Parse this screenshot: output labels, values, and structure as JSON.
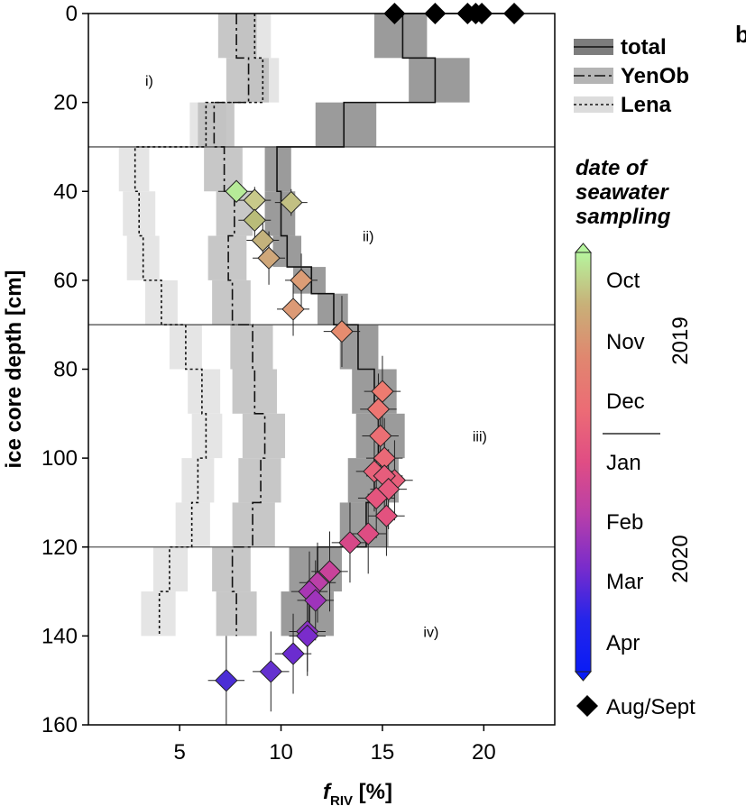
{
  "panel_letter": "b",
  "chart_data": {
    "type": "step-profile",
    "title": "",
    "xlabel_main": "f",
    "xlabel_sub": "RIV",
    "xlabel_unit": " [%]",
    "ylabel": "ice core depth [cm]",
    "xlim": [
      0.5,
      23.5
    ],
    "ylim": [
      0,
      160
    ],
    "y_inverted": true,
    "grid": false,
    "x_ticks": [
      5,
      10,
      15,
      20
    ],
    "y_ticks": [
      0,
      20,
      40,
      60,
      80,
      100,
      120,
      140,
      160
    ],
    "zone_boundaries": [
      30,
      70,
      120
    ],
    "zones": [
      {
        "label": "i)",
        "x": 3.5,
        "depth": 15
      },
      {
        "label": "ii)",
        "x": 14.3,
        "depth": 50
      },
      {
        "label": "iii)",
        "x": 19.8,
        "depth": 95
      },
      {
        "label": "iv)",
        "x": 17.4,
        "depth": 139
      }
    ],
    "series": [
      {
        "name": "total",
        "line_style": "solid",
        "band_color": "#8a8a8a",
        "segments": [
          {
            "top": 0,
            "bottom": 10,
            "value": 16.0,
            "lo": 14.6,
            "hi": 17.2
          },
          {
            "top": 10,
            "bottom": 20,
            "value": 17.6,
            "lo": 16.3,
            "hi": 19.3
          },
          {
            "top": 20,
            "bottom": 30,
            "value": 13.1,
            "lo": 11.7,
            "hi": 14.7
          },
          {
            "top": 30,
            "bottom": 40,
            "value": 9.8,
            "lo": 9.2,
            "hi": 10.5
          },
          {
            "top": 40,
            "bottom": 50,
            "value": 10.0,
            "lo": 9.2,
            "hi": 10.7
          },
          {
            "top": 50,
            "bottom": 57,
            "value": 10.3,
            "lo": 9.6,
            "hi": 11.0
          },
          {
            "top": 57,
            "bottom": 63,
            "value": 11.5,
            "lo": 10.6,
            "hi": 12.2
          },
          {
            "top": 63,
            "bottom": 70,
            "value": 12.6,
            "lo": 11.8,
            "hi": 13.3
          },
          {
            "top": 70,
            "bottom": 80,
            "value": 13.8,
            "lo": 12.9,
            "hi": 14.8
          },
          {
            "top": 80,
            "bottom": 90,
            "value": 14.6,
            "lo": 13.5,
            "hi": 15.7
          },
          {
            "top": 90,
            "bottom": 100,
            "value": 14.8,
            "lo": 13.7,
            "hi": 16.1
          },
          {
            "top": 100,
            "bottom": 110,
            "value": 14.6,
            "lo": 13.3,
            "hi": 15.8
          },
          {
            "top": 110,
            "bottom": 120,
            "value": 14.2,
            "lo": 12.9,
            "hi": 15.3
          },
          {
            "top": 120,
            "bottom": 130,
            "value": 11.8,
            "lo": 10.4,
            "hi": 13.0
          },
          {
            "top": 130,
            "bottom": 140,
            "value": 11.4,
            "lo": 10.0,
            "hi": 12.6
          }
        ]
      },
      {
        "name": "YenOb",
        "line_style": "dashdot",
        "band_color": "#bdbdbd",
        "segments": [
          {
            "top": 0,
            "bottom": 10,
            "value": 7.8,
            "lo": 6.9,
            "hi": 8.8
          },
          {
            "top": 10,
            "bottom": 20,
            "value": 8.4,
            "lo": 7.3,
            "hi": 9.4
          },
          {
            "top": 20,
            "bottom": 30,
            "value": 6.7,
            "lo": 5.9,
            "hi": 7.7
          },
          {
            "top": 30,
            "bottom": 40,
            "value": 7.2,
            "lo": 6.2,
            "hi": 8.1
          },
          {
            "top": 40,
            "bottom": 50,
            "value": 7.7,
            "lo": 6.8,
            "hi": 8.6
          },
          {
            "top": 50,
            "bottom": 60,
            "value": 7.4,
            "lo": 6.4,
            "hi": 8.3
          },
          {
            "top": 60,
            "bottom": 70,
            "value": 7.6,
            "lo": 6.6,
            "hi": 8.5
          },
          {
            "top": 70,
            "bottom": 80,
            "value": 8.6,
            "lo": 7.5,
            "hi": 9.6
          },
          {
            "top": 80,
            "bottom": 90,
            "value": 8.7,
            "lo": 7.6,
            "hi": 9.8
          },
          {
            "top": 90,
            "bottom": 100,
            "value": 9.2,
            "lo": 8.1,
            "hi": 10.2
          },
          {
            "top": 100,
            "bottom": 110,
            "value": 9.0,
            "lo": 7.9,
            "hi": 10.0
          },
          {
            "top": 110,
            "bottom": 120,
            "value": 8.6,
            "lo": 7.6,
            "hi": 9.7
          },
          {
            "top": 120,
            "bottom": 130,
            "value": 7.6,
            "lo": 6.6,
            "hi": 8.5
          },
          {
            "top": 130,
            "bottom": 140,
            "value": 7.8,
            "lo": 6.8,
            "hi": 8.8
          }
        ]
      },
      {
        "name": "Lena",
        "line_style": "dotted",
        "band_color": "#e1e1e1",
        "segments": [
          {
            "top": 0,
            "bottom": 10,
            "value": 8.7,
            "lo": 7.8,
            "hi": 9.5
          },
          {
            "top": 10,
            "bottom": 20,
            "value": 9.1,
            "lo": 8.3,
            "hi": 9.9
          },
          {
            "top": 20,
            "bottom": 30,
            "value": 6.3,
            "lo": 5.5,
            "hi": 7.3
          },
          {
            "top": 30,
            "bottom": 40,
            "value": 2.8,
            "lo": 2.0,
            "hi": 3.5
          },
          {
            "top": 40,
            "bottom": 50,
            "value": 3.0,
            "lo": 2.2,
            "hi": 3.8
          },
          {
            "top": 50,
            "bottom": 60,
            "value": 3.2,
            "lo": 2.4,
            "hi": 4.0
          },
          {
            "top": 60,
            "bottom": 70,
            "value": 4.1,
            "lo": 3.3,
            "hi": 4.9
          },
          {
            "top": 70,
            "bottom": 80,
            "value": 5.3,
            "lo": 4.5,
            "hi": 6.1
          },
          {
            "top": 80,
            "bottom": 90,
            "value": 6.1,
            "lo": 5.4,
            "hi": 7.0
          },
          {
            "top": 90,
            "bottom": 100,
            "value": 6.3,
            "lo": 5.6,
            "hi": 7.1
          },
          {
            "top": 100,
            "bottom": 110,
            "value": 5.9,
            "lo": 5.1,
            "hi": 6.7
          },
          {
            "top": 110,
            "bottom": 120,
            "value": 5.6,
            "lo": 4.8,
            "hi": 6.5
          },
          {
            "top": 120,
            "bottom": 130,
            "value": 4.5,
            "lo": 3.7,
            "hi": 5.4
          },
          {
            "top": 130,
            "bottom": 140,
            "value": 4.0,
            "lo": 3.1,
            "hi": 4.8
          }
        ]
      }
    ],
    "seawater_samples": [
      {
        "x": 7.8,
        "y": 40,
        "xerr": 0.9,
        "yerr": 0,
        "color": "#b6eb98"
      },
      {
        "x": 8.7,
        "y": 42,
        "xerr": 0.8,
        "yerr": 3,
        "color": "#c8c98a"
      },
      {
        "x": 10.5,
        "y": 42.5,
        "xerr": 0.8,
        "yerr": 3,
        "color": "#c2c083"
      },
      {
        "x": 8.7,
        "y": 46.5,
        "xerr": 0.8,
        "yerr": 4,
        "color": "#b9bc79"
      },
      {
        "x": 9.1,
        "y": 51,
        "xerr": 0.8,
        "yerr": 5,
        "color": "#c4b27c"
      },
      {
        "x": 9.4,
        "y": 55,
        "xerr": 0.8,
        "yerr": 6,
        "color": "#cfa77a"
      },
      {
        "x": 11.0,
        "y": 60,
        "xerr": 0.8,
        "yerr": 6,
        "color": "#dc9d76"
      },
      {
        "x": 10.6,
        "y": 66.5,
        "xerr": 0.8,
        "yerr": 6,
        "color": "#dc9a76"
      },
      {
        "x": 13.0,
        "y": 71.5,
        "xerr": 0.9,
        "yerr": 8,
        "color": "#e68c6f"
      },
      {
        "x": 15.0,
        "y": 85,
        "xerr": 0.9,
        "yerr": 8,
        "color": "#ed7b70"
      },
      {
        "x": 14.8,
        "y": 89,
        "xerr": 0.9,
        "yerr": 8,
        "color": "#ed7672"
      },
      {
        "x": 14.9,
        "y": 95,
        "xerr": 0.9,
        "yerr": 8,
        "color": "#ec6f74"
      },
      {
        "x": 15.1,
        "y": 100,
        "xerr": 0.9,
        "yerr": 9,
        "color": "#ea6977"
      },
      {
        "x": 14.6,
        "y": 103,
        "xerr": 0.9,
        "yerr": 9,
        "color": "#e8627a"
      },
      {
        "x": 15.6,
        "y": 105,
        "xerr": 0.9,
        "yerr": 9,
        "color": "#e75f7b"
      },
      {
        "x": 15.1,
        "y": 104,
        "xerr": 0.9,
        "yerr": 9,
        "color": "#e65d7c"
      },
      {
        "x": 15.3,
        "y": 107,
        "xerr": 0.9,
        "yerr": 9,
        "color": "#e5597d"
      },
      {
        "x": 14.7,
        "y": 109,
        "xerr": 0.9,
        "yerr": 9,
        "color": "#e4557e"
      },
      {
        "x": 15.2,
        "y": 113,
        "xerr": 0.9,
        "yerr": 9,
        "color": "#e3527f"
      },
      {
        "x": 14.3,
        "y": 117,
        "xerr": 0.9,
        "yerr": 9,
        "color": "#de4d83"
      },
      {
        "x": 13.4,
        "y": 119,
        "xerr": 0.9,
        "yerr": 9,
        "color": "#d64888"
      },
      {
        "x": 12.4,
        "y": 125.5,
        "xerr": 0.9,
        "yerr": 9,
        "color": "#c9439a"
      },
      {
        "x": 11.8,
        "y": 128,
        "xerr": 0.9,
        "yerr": 9,
        "color": "#bb40a8"
      },
      {
        "x": 11.4,
        "y": 130,
        "xerr": 0.9,
        "yerr": 9,
        "color": "#a838b4"
      },
      {
        "x": 11.7,
        "y": 132,
        "xerr": 0.9,
        "yerr": 9,
        "color": "#9f34bb"
      },
      {
        "x": 11.3,
        "y": 139,
        "xerr": 0.9,
        "yerr": 9,
        "color": "#8c32c4"
      },
      {
        "x": 11.3,
        "y": 140,
        "xerr": 0.9,
        "yerr": 9,
        "color": "#7a2ccb"
      },
      {
        "x": 10.6,
        "y": 144,
        "xerr": 0.9,
        "yerr": 9,
        "color": "#6b2ccf"
      },
      {
        "x": 9.5,
        "y": 148,
        "xerr": 0.9,
        "yerr": 9,
        "color": "#6431cf"
      },
      {
        "x": 7.3,
        "y": 150,
        "xerr": 0.9,
        "yerr": 10,
        "color": "#4b2ed6"
      }
    ],
    "aug_sept_samples": [
      {
        "x": 15.6,
        "y": 0
      },
      {
        "x": 17.6,
        "y": 0
      },
      {
        "x": 19.2,
        "y": 0
      },
      {
        "x": 19.6,
        "y": 0
      },
      {
        "x": 19.9,
        "y": 0
      },
      {
        "x": 21.5,
        "y": 0
      }
    ],
    "colorbar": {
      "title_lines": [
        "date of",
        "seawater",
        "sampling"
      ],
      "months": [
        "Oct",
        "Nov",
        "Dec",
        "Jan",
        "Feb",
        "Mar",
        "Apr"
      ],
      "month_fractions": [
        0.07,
        0.24,
        0.41,
        0.6,
        0.77,
        0.94,
        1.11
      ],
      "year_split_fraction": 0.51,
      "years": [
        "2019",
        "2020"
      ],
      "gradient": [
        "#b6f59e",
        "#c8b078",
        "#e0876f",
        "#ec6c75",
        "#e04d84",
        "#b83fa9",
        "#7a2ccb",
        "#2525ea",
        "#0a1cf5"
      ],
      "arrow_color": "#b6f59e"
    },
    "legend": {
      "placement": "right",
      "entries": [
        {
          "label": "total",
          "style": "solid",
          "color": "#7d7d7d"
        },
        {
          "label": "YenOb",
          "style": "dashdot",
          "color": "#b4b4b4"
        },
        {
          "label": "Lena",
          "style": "dotted",
          "color": "#dcdcdc"
        }
      ],
      "marker_label": "Aug/Sept"
    }
  }
}
